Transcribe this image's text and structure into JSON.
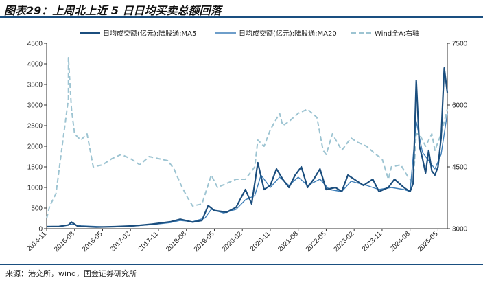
{
  "header": {
    "title": "图表29：上周北上近 5 日日均买卖总额回落"
  },
  "footer": {
    "source": "来源：港交所，wind，国金证券研究所"
  },
  "colors": {
    "ma5": "#1b4e7e",
    "ma20": "#3f7fb8",
    "wind_a": "#9dc4d2",
    "rule": "#1a4f80"
  },
  "chart_data": {
    "type": "line",
    "title": "",
    "x_ticks": [
      "2014-11",
      "2015-08",
      "2016-05",
      "2017-02",
      "2017-11",
      "2018-08",
      "2019-05",
      "2020-02",
      "2020-11",
      "2021-08",
      "2022-05",
      "2023-02",
      "2023-11",
      "2024-08",
      "2025-05"
    ],
    "x_range": [
      "2014-11",
      "2025-08"
    ],
    "y_left": {
      "ticks": [
        0,
        500,
        1000,
        1500,
        2000,
        2500,
        3000,
        3500,
        4000,
        4500
      ],
      "range": [
        0,
        4500
      ]
    },
    "y_right": {
      "ticks": [
        3000,
        4500,
        6000,
        7500
      ],
      "range": [
        3000,
        7500
      ]
    },
    "legend_position": "top",
    "series": [
      {
        "name": "日均成交额(亿元):陆股通:MA5",
        "axis": "left",
        "style": "solid-thick",
        "points": [
          [
            "2014-11",
            50
          ],
          [
            "2015-03",
            55
          ],
          [
            "2015-06",
            90
          ],
          [
            "2015-07",
            160
          ],
          [
            "2015-09",
            60
          ],
          [
            "2016-03",
            40
          ],
          [
            "2016-09",
            50
          ],
          [
            "2017-03",
            70
          ],
          [
            "2017-09",
            110
          ],
          [
            "2018-03",
            170
          ],
          [
            "2018-06",
            230
          ],
          [
            "2018-10",
            160
          ],
          [
            "2019-01",
            200
          ],
          [
            "2019-03",
            560
          ],
          [
            "2019-05",
            440
          ],
          [
            "2019-09",
            400
          ],
          [
            "2019-12",
            520
          ],
          [
            "2020-03",
            950
          ],
          [
            "2020-05",
            600
          ],
          [
            "2020-07",
            1600
          ],
          [
            "2020-09",
            950
          ],
          [
            "2020-11",
            1050
          ],
          [
            "2021-01",
            1450
          ],
          [
            "2021-03",
            1200
          ],
          [
            "2021-05",
            1000
          ],
          [
            "2021-07",
            1300
          ],
          [
            "2021-09",
            1500
          ],
          [
            "2021-11",
            1000
          ],
          [
            "2022-01",
            1200
          ],
          [
            "2022-03",
            1450
          ],
          [
            "2022-05",
            950
          ],
          [
            "2022-08",
            1000
          ],
          [
            "2022-10",
            900
          ],
          [
            "2022-12",
            1300
          ],
          [
            "2023-02",
            1200
          ],
          [
            "2023-05",
            1050
          ],
          [
            "2023-08",
            1200
          ],
          [
            "2023-10",
            900
          ],
          [
            "2024-01",
            1000
          ],
          [
            "2024-03",
            1200
          ],
          [
            "2024-06",
            1000
          ],
          [
            "2024-08",
            900
          ],
          [
            "2024-09",
            1100
          ],
          [
            "2024-10",
            3600
          ],
          [
            "2024-11",
            2000
          ],
          [
            "2024-12",
            1700
          ],
          [
            "2025-01",
            1350
          ],
          [
            "2025-02",
            1900
          ],
          [
            "2025-03",
            1400
          ],
          [
            "2025-04",
            1300
          ],
          [
            "2025-05",
            1500
          ],
          [
            "2025-06",
            2200
          ],
          [
            "2025-07",
            3900
          ],
          [
            "2025-08",
            3300
          ]
        ]
      },
      {
        "name": "日均成交额(亿元):陆股通:MA20",
        "axis": "left",
        "style": "solid",
        "points": [
          [
            "2014-11",
            45
          ],
          [
            "2015-04",
            60
          ],
          [
            "2015-07",
            110
          ],
          [
            "2015-10",
            70
          ],
          [
            "2016-06",
            45
          ],
          [
            "2017-03",
            65
          ],
          [
            "2017-09",
            100
          ],
          [
            "2018-03",
            150
          ],
          [
            "2018-06",
            200
          ],
          [
            "2018-10",
            170
          ],
          [
            "2019-02",
            260
          ],
          [
            "2019-04",
            470
          ],
          [
            "2019-08",
            380
          ],
          [
            "2019-12",
            470
          ],
          [
            "2020-03",
            700
          ],
          [
            "2020-06",
            800
          ],
          [
            "2020-08",
            1300
          ],
          [
            "2020-11",
            1000
          ],
          [
            "2021-02",
            1250
          ],
          [
            "2021-05",
            1050
          ],
          [
            "2021-08",
            1250
          ],
          [
            "2021-11",
            1050
          ],
          [
            "2022-03",
            1200
          ],
          [
            "2022-06",
            950
          ],
          [
            "2022-10",
            900
          ],
          [
            "2023-01",
            1150
          ],
          [
            "2023-06",
            1050
          ],
          [
            "2023-10",
            950
          ],
          [
            "2024-02",
            1000
          ],
          [
            "2024-06",
            950
          ],
          [
            "2024-08",
            900
          ],
          [
            "2024-10",
            2600
          ],
          [
            "2024-12",
            1850
          ],
          [
            "2025-02",
            1650
          ],
          [
            "2025-04",
            1450
          ],
          [
            "2025-06",
            1800
          ],
          [
            "2025-08",
            2800
          ]
        ]
      },
      {
        "name": "Wind全A:右轴",
        "axis": "right",
        "style": "dashed",
        "points": [
          [
            "2014-11",
            3250
          ],
          [
            "2014-12",
            3550
          ],
          [
            "2015-02",
            3850
          ],
          [
            "2015-04",
            5000
          ],
          [
            "2015-06",
            6150
          ],
          [
            "2015-06",
            7150
          ],
          [
            "2015-07",
            5900
          ],
          [
            "2015-08",
            5300
          ],
          [
            "2015-10",
            5150
          ],
          [
            "2015-12",
            5300
          ],
          [
            "2016-02",
            4500
          ],
          [
            "2016-05",
            4550
          ],
          [
            "2016-08",
            4700
          ],
          [
            "2016-11",
            4800
          ],
          [
            "2017-02",
            4700
          ],
          [
            "2017-05",
            4550
          ],
          [
            "2017-08",
            4750
          ],
          [
            "2017-11",
            4700
          ],
          [
            "2018-02",
            4650
          ],
          [
            "2018-04",
            4450
          ],
          [
            "2018-06",
            4100
          ],
          [
            "2018-08",
            3800
          ],
          [
            "2018-10",
            3550
          ],
          [
            "2019-01",
            3600
          ],
          [
            "2019-04",
            4300
          ],
          [
            "2019-06",
            4000
          ],
          [
            "2019-09",
            4100
          ],
          [
            "2019-12",
            4200
          ],
          [
            "2020-03",
            4200
          ],
          [
            "2020-06",
            4500
          ],
          [
            "2020-07",
            5150
          ],
          [
            "2020-09",
            5000
          ],
          [
            "2020-11",
            5400
          ],
          [
            "2021-02",
            5800
          ],
          [
            "2021-03",
            5500
          ],
          [
            "2021-05",
            5600
          ],
          [
            "2021-08",
            5800
          ],
          [
            "2021-11",
            5900
          ],
          [
            "2022-02",
            5700
          ],
          [
            "2022-04",
            4900
          ],
          [
            "2022-05",
            4800
          ],
          [
            "2022-07",
            5300
          ],
          [
            "2022-10",
            4900
          ],
          [
            "2023-01",
            5200
          ],
          [
            "2023-03",
            5100
          ],
          [
            "2023-06",
            5000
          ],
          [
            "2023-09",
            4800
          ],
          [
            "2023-11",
            4700
          ],
          [
            "2024-01",
            4200
          ],
          [
            "2024-02",
            4500
          ],
          [
            "2024-05",
            4550
          ],
          [
            "2024-07",
            4300
          ],
          [
            "2024-09",
            4100
          ],
          [
            "2024-10",
            5300
          ],
          [
            "2024-11",
            5300
          ],
          [
            "2025-01",
            5000
          ],
          [
            "2025-03",
            5300
          ],
          [
            "2025-04",
            4900
          ],
          [
            "2025-06",
            5300
          ],
          [
            "2025-08",
            5900
          ]
        ]
      }
    ]
  }
}
